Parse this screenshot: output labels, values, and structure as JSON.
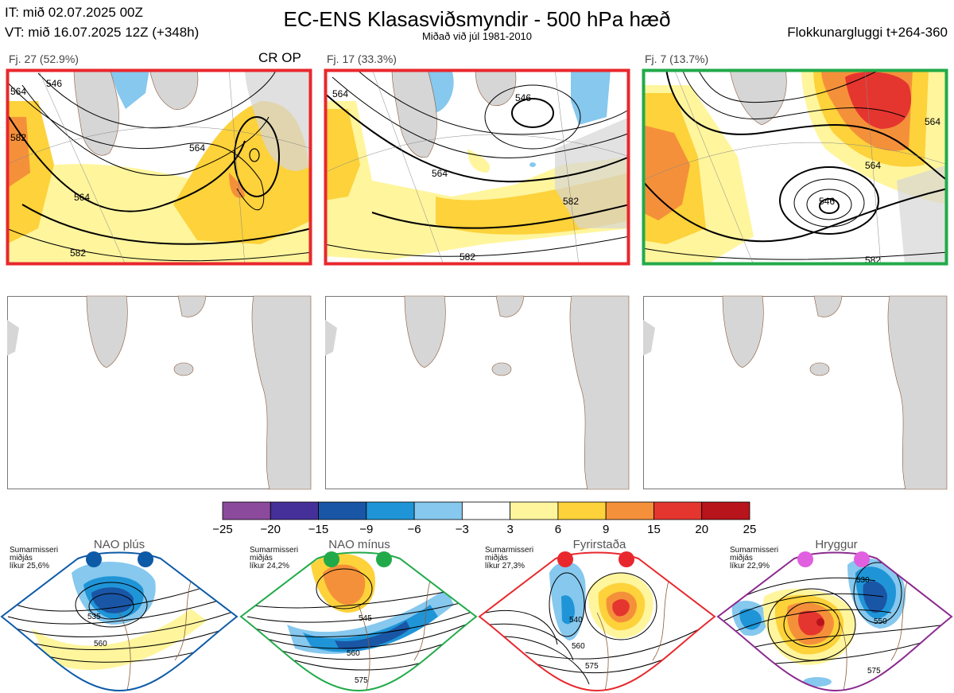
{
  "header": {
    "it_line": "IT: mið 02.07.2025 00Z",
    "vt_line": "VT: mið 16.07.2025 12Z  (+348h)",
    "title": "EC-ENS Klasasviðsmyndir - 500 hPa hæð",
    "subtitle": "Miðað við júl 1981-2010",
    "window": "Flokkunargluggi t+264-360"
  },
  "clusters": [
    {
      "label": "Fj. 27 (52.9%)",
      "tag": "CR OP",
      "border_color": "#e8282d",
      "contours": [
        "546",
        "564",
        "564",
        "564",
        "582",
        "582"
      ]
    },
    {
      "label": "Fj. 17 (33.3%)",
      "tag": "",
      "border_color": "#e8282d",
      "contours": [
        "546",
        "564",
        "564",
        "582",
        "582"
      ]
    },
    {
      "label": "Fj. 7 (13.7%)",
      "tag": "",
      "border_color": "#22aa4a",
      "contours": [
        "546",
        "564",
        "564",
        "582"
      ]
    }
  ],
  "colorbar": {
    "labels": [
      "−25",
      "−20",
      "−15",
      "−9",
      "−6",
      "−3",
      "3",
      "6",
      "9",
      "15",
      "20",
      "25"
    ],
    "colors": [
      "#8b4a9c",
      "#45309a",
      "#1a56a6",
      "#1f95d8",
      "#86c8ee",
      "#ffffff",
      "#fff59d",
      "#fdd23a",
      "#f5903a",
      "#e5352f",
      "#b8141b"
    ]
  },
  "regimes": [
    {
      "name": "NAO plús",
      "season": "Sumarmisseri",
      "mean": "miðjás",
      "likelihood": "líkur 25,6%",
      "color": "#0d5aa7",
      "contours": [
        "535",
        "560"
      ]
    },
    {
      "name": "NAO mínus",
      "season": "Sumarmisseri",
      "mean": "miðjás",
      "likelihood": "líkur 24,2%",
      "color": "#22aa4a",
      "contours": [
        "545",
        "560",
        "575"
      ]
    },
    {
      "name": "Fyrirstaða",
      "season": "Sumarmisseri",
      "mean": "miðjás",
      "likelihood": "líkur 27,3%",
      "color": "#e8282d",
      "contours": [
        "540",
        "560",
        "575"
      ]
    },
    {
      "name": "Hryggur",
      "season": "Sumarmisseri",
      "mean": "miðjás",
      "likelihood": "líkur 22,9%",
      "color": "#e060e0",
      "contours": [
        "530",
        "550",
        "575"
      ]
    }
  ]
}
